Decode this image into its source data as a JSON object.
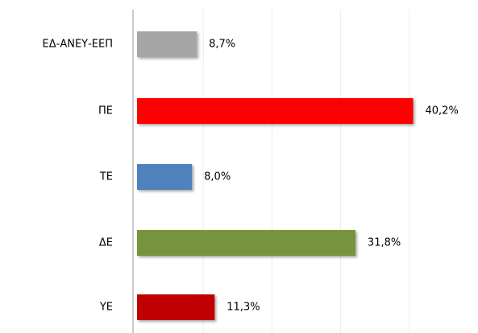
{
  "chart_data": {
    "type": "hbar",
    "categories": [
      "ΕΔ-ΑΝΕΥ-ΕΕΠ",
      "ΠΕ",
      "ΤΕ",
      "ΔΕ",
      "ΥΕ"
    ],
    "values": [
      8.7,
      40.2,
      8.0,
      31.8,
      11.3
    ],
    "value_labels": [
      "8,7%",
      "40,2%",
      "8,0%",
      "31,8%",
      "11,3%"
    ],
    "colors": [
      "#a6a6a6",
      "#ff0000",
      "#4f81bd",
      "#77933c",
      "#c00000"
    ],
    "xlim": [
      0,
      50
    ],
    "xticks": [
      0,
      10,
      20,
      30,
      40,
      50
    ],
    "grid": true
  }
}
